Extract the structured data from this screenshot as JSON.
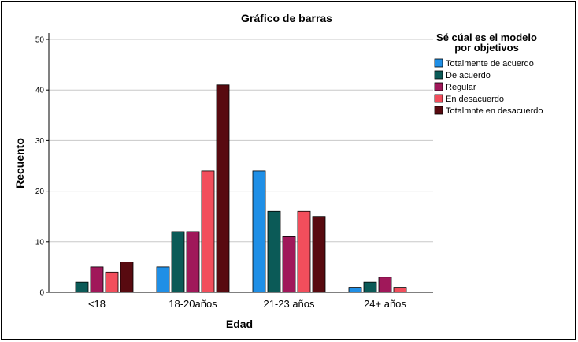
{
  "chart_data": {
    "type": "bar",
    "title": "Gráfico de barras",
    "xlabel": "Edad",
    "ylabel": "Recuento",
    "categories": [
      "<18",
      "18-20años",
      "21-23 años",
      "24+ años"
    ],
    "ylim": [
      0,
      50
    ],
    "yticks": [
      0,
      10,
      20,
      30,
      40,
      50
    ],
    "grid": true,
    "legend_title": [
      "Sé cúal es el modelo",
      "por objetivos"
    ],
    "legend_position": "top-right",
    "series": [
      {
        "name": "Totalmente de acuerdo",
        "color": "#1f8fe6",
        "values": [
          0,
          5,
          24,
          1
        ]
      },
      {
        "name": "De acuerdo",
        "color": "#0b5a57",
        "values": [
          2,
          12,
          16,
          2
        ]
      },
      {
        "name": "Regular",
        "color": "#a0185a",
        "values": [
          5,
          12,
          11,
          3
        ]
      },
      {
        "name": "En desacuerdo",
        "color": "#f24e5c",
        "values": [
          4,
          24,
          16,
          1
        ]
      },
      {
        "name": "Totalmnte en desacuerdo",
        "color": "#580a10",
        "values": [
          6,
          41,
          15,
          0
        ]
      }
    ]
  }
}
